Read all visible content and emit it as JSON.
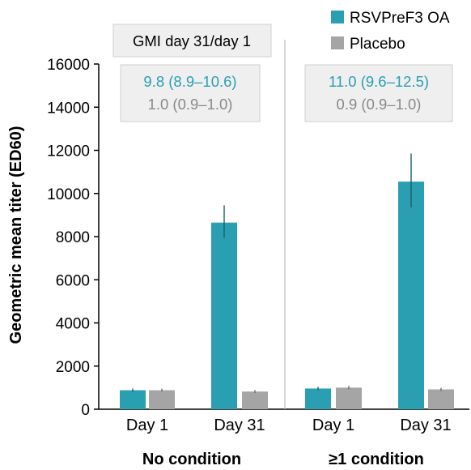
{
  "chart_data": {
    "type": "bar",
    "ylabel": "Geometric mean titer (ED60)",
    "ylim": [
      0,
      16000
    ],
    "yticks": [
      0,
      2000,
      4000,
      6000,
      8000,
      10000,
      12000,
      14000,
      16000
    ],
    "groups": [
      {
        "name": "No condition",
        "categories": [
          "Day 1",
          "Day 31"
        ],
        "series_values": {
          "RSVPreF3 OA": [
            {
              "value": 880,
              "err_low": 800,
              "err_high": 960
            },
            {
              "value": 8650,
              "err_low": 7950,
              "err_high": 9450
            }
          ],
          "Placebo": [
            {
              "value": 880,
              "err_low": 810,
              "err_high": 950
            },
            {
              "value": 820,
              "err_low": 750,
              "err_high": 890
            }
          ]
        },
        "gmi": {
          "rsv": "9.8 (8.9–10.6)",
          "placebo": "1.0 (0.9–1.0)"
        }
      },
      {
        "name": "≥1 condition",
        "categories": [
          "Day 1",
          "Day 31"
        ],
        "series_values": {
          "RSVPreF3 OA": [
            {
              "value": 960,
              "err_low": 880,
              "err_high": 1040
            },
            {
              "value": 10550,
              "err_low": 9350,
              "err_high": 11850
            }
          ],
          "Placebo": [
            {
              "value": 1000,
              "err_low": 920,
              "err_high": 1080
            },
            {
              "value": 920,
              "err_low": 840,
              "err_high": 990
            }
          ]
        },
        "gmi": {
          "rsv": "11.0 (9.6–12.5)",
          "placebo": "0.9 (0.9–1.0)"
        }
      }
    ],
    "legend": [
      {
        "name": "RSVPreF3 OA",
        "color": "#2a9fb1"
      },
      {
        "name": "Placebo",
        "color": "#a5a5a5"
      }
    ],
    "annotation_title": "GMI day 31/day 1",
    "grid": false
  },
  "colors": {
    "rsv": "#2a9fb1",
    "placebo": "#a5a5a5",
    "rsv_text": "#2a9fb1",
    "placebo_text": "#8a8a8a",
    "box_fill": "#efefef",
    "box_stroke": "#cfcfcf"
  }
}
